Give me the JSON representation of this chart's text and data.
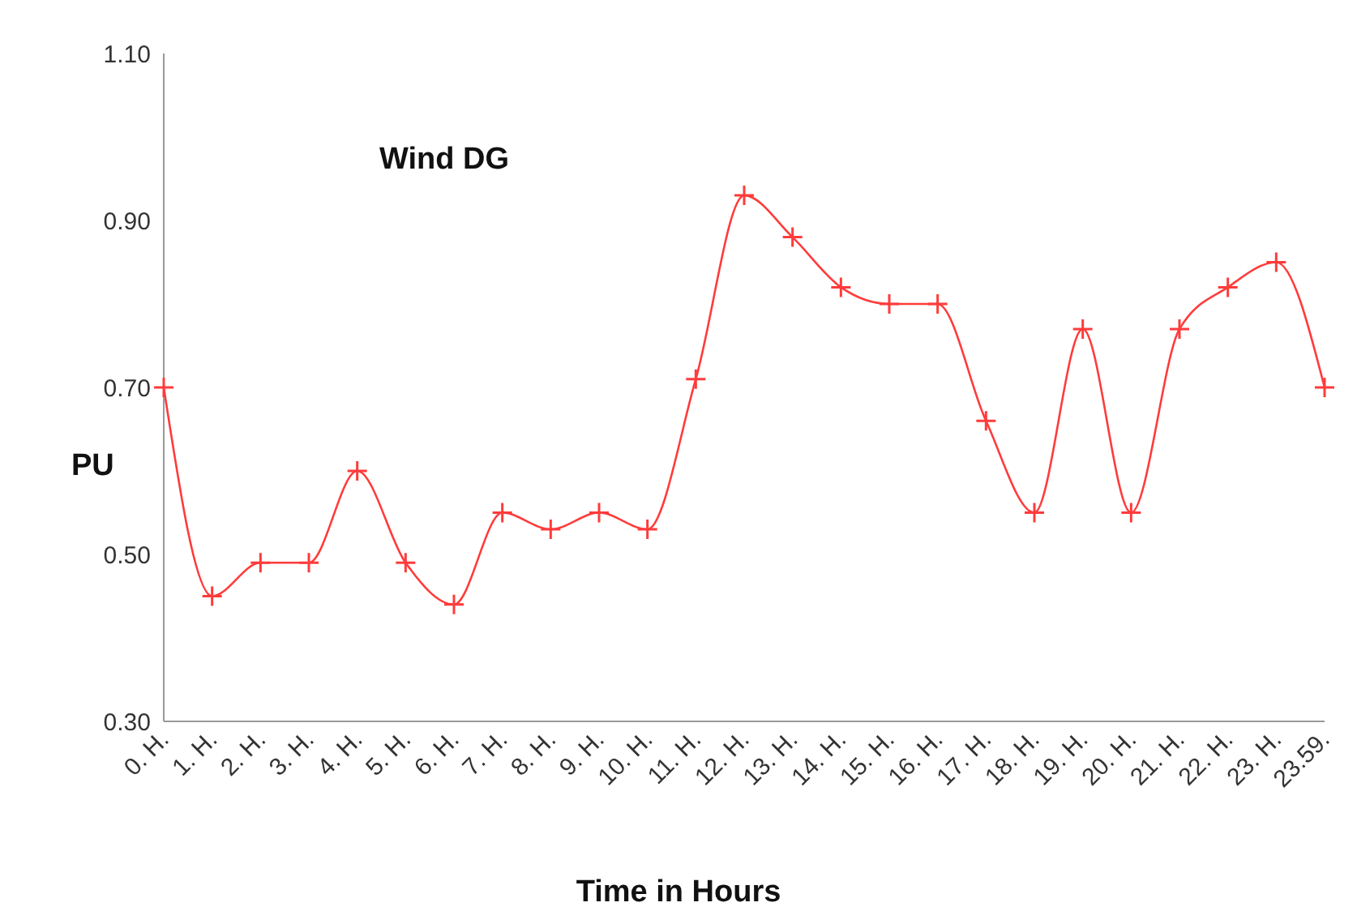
{
  "chart_data": {
    "type": "line",
    "title": "Wind DG",
    "xlabel": "Time in Hours",
    "ylabel": "PU",
    "categories": [
      "0. H.",
      "1. H.",
      "2. H.",
      "3. H.",
      "4. H.",
      "5. H.",
      "6. H.",
      "7. H.",
      "8. H.",
      "9. H.",
      "10. H.",
      "11. H.",
      "12. H.",
      "13. H.",
      "14. H.",
      "15. H.",
      "16. H.",
      "17. H.",
      "18. H.",
      "19. H.",
      "20. H.",
      "21. H.",
      "22. H.",
      "23. H.",
      "23.59."
    ],
    "series": [
      {
        "color": "#ff3b3b",
        "values": [
          0.7,
          0.45,
          0.49,
          0.49,
          0.6,
          0.49,
          0.44,
          0.55,
          0.53,
          0.55,
          0.53,
          0.71,
          0.93,
          0.88,
          0.82,
          0.8,
          0.8,
          0.66,
          0.55,
          0.77,
          0.55,
          0.77,
          0.82,
          0.85,
          0.7
        ]
      }
    ],
    "ylim": [
      0.3,
      1.1
    ],
    "yticks": [
      {
        "value": 0.3,
        "label": "0.30"
      },
      {
        "value": 0.5,
        "label": "0.50"
      },
      {
        "value": 0.7,
        "label": "0.70"
      },
      {
        "value": 0.9,
        "label": "0.90"
      },
      {
        "value": 1.1,
        "label": "1.10"
      }
    ],
    "grid": false,
    "legend": false,
    "marker": "cross",
    "line_style": "solid"
  }
}
